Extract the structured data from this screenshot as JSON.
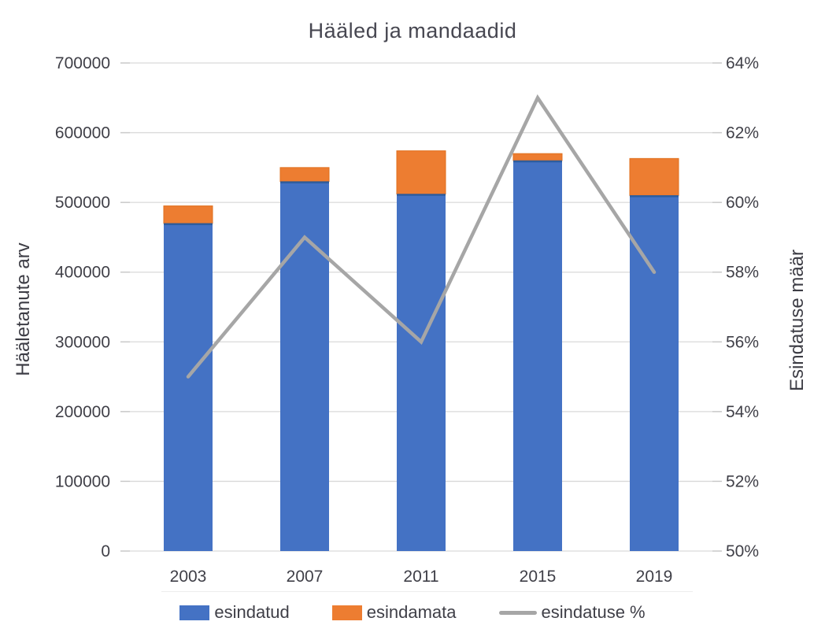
{
  "chart_data": {
    "type": "bar",
    "subtype": "stacked-bars-with-line-dual-axis",
    "title": "Hääled ja mandaadid",
    "ylabel_left": "Hääletanute arv",
    "ylabel_right": "Esindatuse määr",
    "categories": [
      "2003",
      "2007",
      "2011",
      "2015",
      "2019"
    ],
    "series": [
      {
        "name": "esindatud",
        "type": "bar",
        "axis": "left",
        "color": "#4472C4",
        "values": [
          470000,
          530000,
          512000,
          560000,
          510000
        ]
      },
      {
        "name": "esindamata",
        "type": "bar",
        "axis": "left",
        "color": "#ED7D31",
        "values": [
          25000,
          20000,
          62000,
          10000,
          53000
        ]
      },
      {
        "name": "esindatuse %",
        "type": "line",
        "axis": "right",
        "color": "#A6A6A6",
        "values": [
          55,
          59,
          56,
          63,
          58
        ]
      }
    ],
    "y_left": {
      "min": 0,
      "max": 700000,
      "step": 100000,
      "labels": [
        "0",
        "100000",
        "200000",
        "300000",
        "400000",
        "500000",
        "600000",
        "700000"
      ]
    },
    "y_right": {
      "min": 50,
      "max": 64,
      "step": 2,
      "labels": [
        "50%",
        "52%",
        "54%",
        "56%",
        "58%",
        "60%",
        "62%",
        "64%"
      ]
    },
    "legend_position": "bottom",
    "grid": true,
    "colors": {
      "bar_blue": "#4472C4",
      "bar_blue_edge": "#2E5D9E",
      "bar_orange": "#ED7D31",
      "bar_orange_edge": "#E0701E",
      "line_gray": "#A6A6A6",
      "gridline": "#D9D9D9",
      "tick_mark": "#C9C9C9",
      "tick_text": "#3F3F47",
      "title_text": "#474751"
    }
  }
}
